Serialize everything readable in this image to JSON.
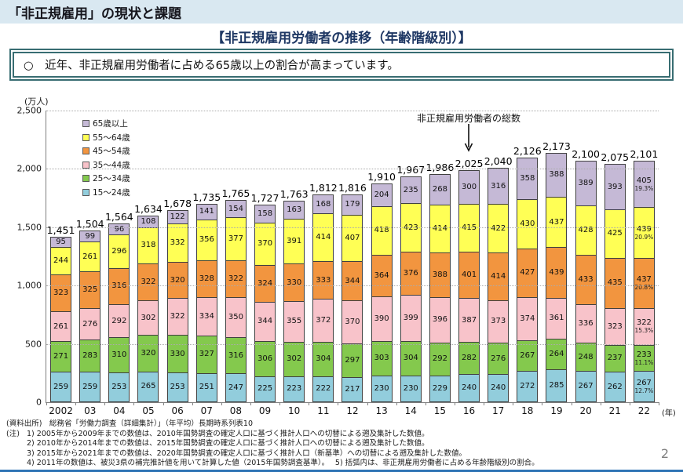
{
  "page": {
    "header_title": "「非正規雇用」の現状と課題",
    "section_title": "【非正規雇用労働者の推移（年齢階級別）】",
    "callout": "○　近年、非正規雇用労働者に占める65歳以上の割合が高まっています。",
    "page_number": "2"
  },
  "chart_data": {
    "type": "bar",
    "stacked": true,
    "title": "非正規雇用労働者の推移（年齢階級別）",
    "unit_label": "(万人)",
    "ylim": [
      0,
      2500
    ],
    "ytick_values": [
      0,
      500,
      1000,
      1500,
      2000,
      2500
    ],
    "yticks": [
      "0",
      "500",
      "1,000",
      "1,500",
      "2,000",
      "2,500"
    ],
    "grid": "dotted horizontal",
    "legend_position": "top-left, order top to bottom: 65歳以上 → 15～24歳",
    "annotation": "非正規雇用労働者の総数",
    "annotation_points_to": "2,025 (2016)",
    "x_suffix": "(年)",
    "categories": [
      "2002",
      "03",
      "04",
      "05",
      "06",
      "07",
      "08",
      "09",
      "10",
      "11",
      "12",
      "13",
      "14",
      "15",
      "16",
      "17",
      "18",
      "19",
      "20",
      "21",
      "22"
    ],
    "totals": [
      "1,451",
      "1,504",
      "1,564",
      "1,634",
      "1,678",
      "1,735",
      "1,765",
      "1,727",
      "1,763",
      "1,812",
      "1,816",
      "1,910",
      "1,967",
      "1,986",
      "2,025",
      "2,040",
      "2,126",
      "2,173",
      "2,100",
      "2,075",
      "2,101"
    ],
    "series": [
      {
        "name": "15～24歳",
        "color": "#92cddc",
        "values": [
          259,
          259,
          253,
          265,
          253,
          251,
          247,
          225,
          223,
          222,
          217,
          230,
          230,
          229,
          240,
          240,
          272,
          285,
          267,
          262,
          267
        ],
        "share_2022": "(12.7%)"
      },
      {
        "name": "25～34歳",
        "color": "#84c94d",
        "values": [
          271,
          283,
          310,
          320,
          330,
          327,
          316,
          306,
          302,
          304,
          297,
          303,
          304,
          292,
          282,
          276,
          267,
          264,
          248,
          237,
          233
        ],
        "share_2022": "(11.1%)"
      },
      {
        "name": "35～44歳",
        "color": "#f8c3ca",
        "values": [
          261,
          276,
          292,
          302,
          322,
          334,
          350,
          344,
          355,
          372,
          370,
          390,
          399,
          396,
          387,
          373,
          374,
          361,
          336,
          323,
          322
        ],
        "share_2022": "(15.3%)"
      },
      {
        "name": "45～54歳",
        "color": "#f2953f",
        "values": [
          323,
          325,
          316,
          322,
          320,
          328,
          322,
          324,
          330,
          333,
          344,
          364,
          376,
          388,
          401,
          414,
          427,
          439,
          433,
          435,
          437
        ],
        "share_2022": "(20.8%)"
      },
      {
        "name": "55～64歳",
        "color": "#ffff55",
        "values": [
          244,
          261,
          296,
          318,
          332,
          356,
          377,
          370,
          391,
          414,
          407,
          418,
          423,
          414,
          415,
          422,
          430,
          437,
          428,
          425,
          439
        ],
        "share_2022": "(20.9%)"
      },
      {
        "name": "65歳以上",
        "color": "#c5b9d6",
        "values": [
          95,
          99,
          96,
          108,
          122,
          141,
          154,
          158,
          163,
          168,
          179,
          204,
          235,
          268,
          300,
          316,
          358,
          388,
          389,
          393,
          405
        ],
        "share_2022": "(19.3%)"
      }
    ]
  },
  "footer": {
    "source": "(資料出所)　総務省「労働力調査（詳細集計）」（年平均）長期時系列表10",
    "note_label": "(注)",
    "notes": [
      "1)  2005年から2009年までの数値は、2010年国勢調査の確定人口に基づく推計人口への切替による遡及集計した数値。",
      "2)  2010年から2014年までの数値は、2015年国勢調査の確定人口に基づく推計人口への切替による遡及集計した数値。",
      "3)  2015年から2021年までの数値は、2020年国勢調査の確定人口に基づく推計人口（新基準）への切替による遡及集計した数値。",
      "4)  2011年の数値は、被災3県の補完推計値を用いて計算した値（2015年国勢調査基準）。　 5)  括弧内は、非正規雇用労働者に占める年齢階級別の割合。"
    ]
  }
}
